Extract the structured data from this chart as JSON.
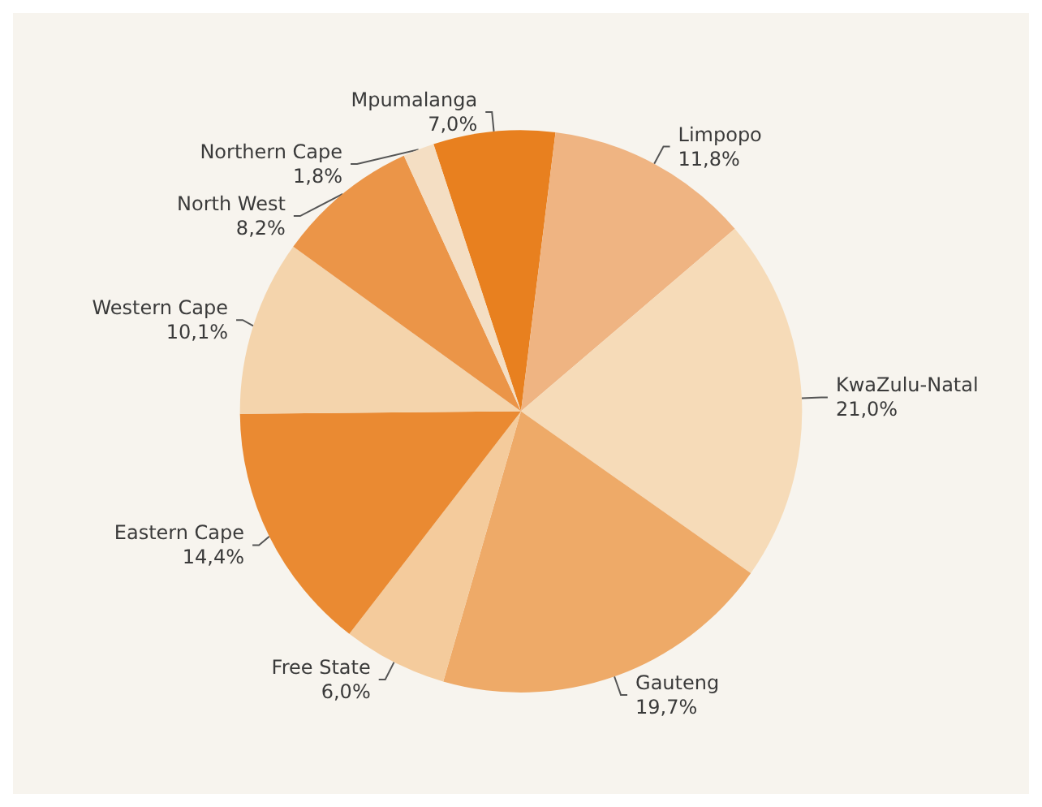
{
  "chart_data": {
    "type": "pie",
    "categories": [
      "Mpumalanga",
      "Limpopo",
      "KwaZulu-Natal",
      "Gauteng",
      "Free State",
      "Eastern Cape",
      "Western Cape",
      "North West",
      "Northern Cape"
    ],
    "values": [
      7.0,
      11.8,
      21.0,
      19.7,
      6.0,
      14.4,
      10.1,
      8.2,
      1.8
    ],
    "value_labels": [
      "7,0%",
      "11,8%",
      "21,0%",
      "19,7%",
      "6,0%",
      "14,4%",
      "10,1%",
      "8,2%",
      "1,8%"
    ],
    "colors": [
      "#e8801f",
      "#efb482",
      "#f6dbb8",
      "#eeaa68",
      "#f4cb9c",
      "#ea8a32",
      "#f4d4ac",
      "#eb9548",
      "#f4dec3"
    ],
    "legend": false
  }
}
